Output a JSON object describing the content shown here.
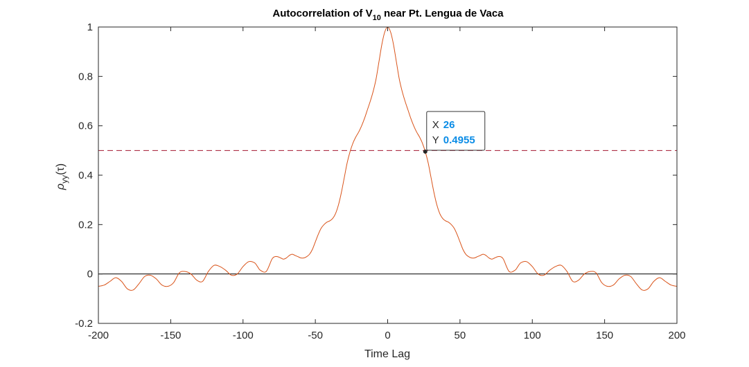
{
  "chart_data": {
    "type": "line",
    "title": "Autocorrelation of V",
    "title_sub": "10",
    "title_rest": " near Pt. Lengua de Vaca",
    "xlabel": "Time Lag",
    "ylabel_main": "ρ",
    "ylabel_sub": "yy",
    "ylabel_rest": "(τ)",
    "xlim": [
      -200,
      200
    ],
    "ylim": [
      -0.2,
      1
    ],
    "xticks": [
      -200,
      -150,
      -100,
      -50,
      0,
      50,
      100,
      150,
      200
    ],
    "xtick_labels": [
      "-200",
      "-150",
      "-100",
      "-50",
      "0",
      "50",
      "100",
      "150",
      "200"
    ],
    "yticks": [
      -0.2,
      0,
      0.2,
      0.4,
      0.6,
      0.8,
      1
    ],
    "ytick_labels": [
      "-0.2",
      "0",
      "0.2",
      "0.4",
      "0.6",
      "0.8",
      "1"
    ],
    "grid": false,
    "series": [
      {
        "color": "#d95319",
        "x": [
          0,
          2,
          4,
          6,
          8,
          10,
          12,
          14,
          16,
          18,
          20,
          22,
          24,
          26,
          28,
          30,
          32,
          34,
          36,
          38,
          40,
          42,
          44,
          46,
          48,
          50,
          52,
          54,
          56,
          58,
          60,
          62,
          64,
          66,
          68,
          70,
          72,
          74,
          76,
          78,
          80,
          84,
          88,
          90,
          92,
          96,
          100,
          104,
          108,
          112,
          116,
          120,
          124,
          128,
          132,
          136,
          140,
          144,
          148,
          152,
          156,
          160,
          164,
          168,
          172,
          176,
          180,
          184,
          188,
          192,
          196,
          200
        ],
        "y": [
          1.0,
          0.98,
          0.93,
          0.86,
          0.79,
          0.74,
          0.7,
          0.665,
          0.63,
          0.6,
          0.575,
          0.555,
          0.53,
          0.4955,
          0.45,
          0.39,
          0.33,
          0.28,
          0.245,
          0.225,
          0.215,
          0.21,
          0.2,
          0.185,
          0.16,
          0.13,
          0.1,
          0.08,
          0.07,
          0.065,
          0.065,
          0.07,
          0.075,
          0.08,
          0.075,
          0.065,
          0.06,
          0.065,
          0.07,
          0.07,
          0.06,
          0.01,
          0.015,
          0.03,
          0.045,
          0.05,
          0.03,
          0.0,
          -0.005,
          0.015,
          0.03,
          0.035,
          0.01,
          -0.03,
          -0.025,
          0.0,
          0.01,
          0.005,
          -0.035,
          -0.05,
          -0.045,
          -0.02,
          -0.005,
          -0.01,
          -0.04,
          -0.065,
          -0.06,
          -0.03,
          -0.015,
          -0.03,
          -0.045,
          -0.05
        ],
        "symmetric": true
      }
    ],
    "reference_lines": [
      {
        "y": 0.5,
        "color": "#a2142f",
        "style": "dashed"
      },
      {
        "y": 0,
        "color": "#000000",
        "style": "solid"
      }
    ],
    "datatip": {
      "x": 26,
      "y": 0.4955,
      "x_label": "X",
      "y_label": "Y",
      "x_text": "26",
      "y_text": "0.4955",
      "value_color": "#0a8ce6"
    }
  }
}
